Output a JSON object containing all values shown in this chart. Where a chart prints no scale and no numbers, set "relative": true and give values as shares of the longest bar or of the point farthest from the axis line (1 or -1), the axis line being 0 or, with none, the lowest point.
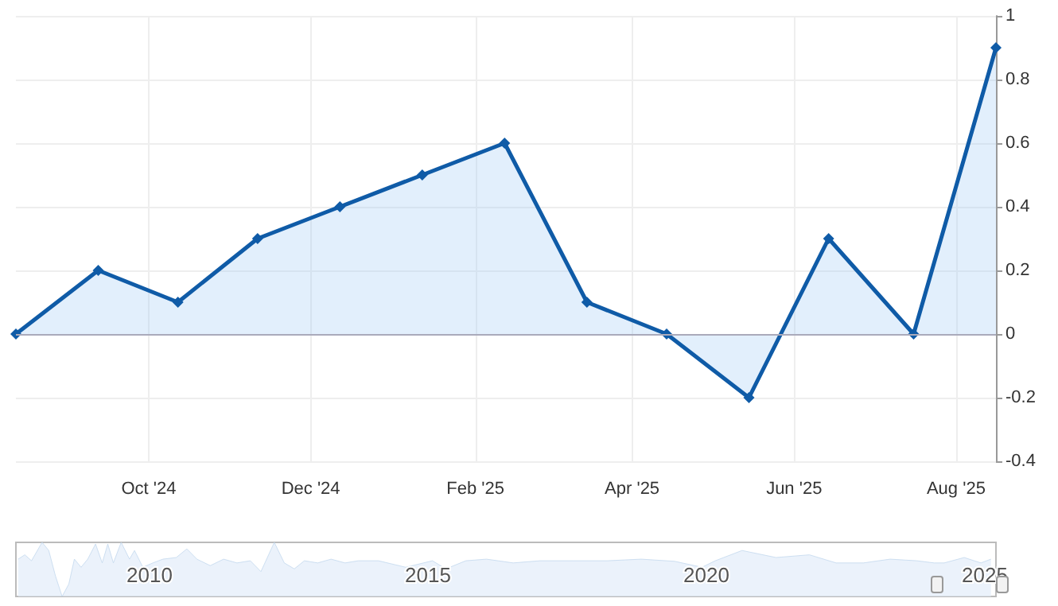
{
  "chart_data": [
    {
      "type": "area",
      "x": [
        "2024-08-12",
        "2024-09-12",
        "2024-10-12",
        "2024-11-11",
        "2024-12-12",
        "2025-01-12",
        "2025-02-12",
        "2025-03-15",
        "2025-04-14",
        "2025-05-15",
        "2025-06-14",
        "2025-07-16",
        "2025-08-16"
      ],
      "series": [
        {
          "color": "#0f5ba7",
          "values": [
            0,
            0.2,
            0.1,
            0.3,
            0.4,
            0.5,
            0.6,
            0.1,
            0,
            -0.2,
            0.3,
            0,
            0.9
          ]
        }
      ],
      "xlim": [
        "2024-08-12",
        "2025-08-16"
      ],
      "xticks": [
        {
          "value": "2024-10-01",
          "label": "Oct '24"
        },
        {
          "value": "2024-12-01",
          "label": "Dec '24"
        },
        {
          "value": "2025-02-01",
          "label": "Feb '25"
        },
        {
          "value": "2025-04-01",
          "label": "Apr '25"
        },
        {
          "value": "2025-06-01",
          "label": "Jun '25"
        },
        {
          "value": "2025-08-01",
          "label": "Aug '25"
        }
      ],
      "ylim": [
        -0.4,
        1
      ],
      "yticks": [
        -0.4,
        -0.2,
        0,
        0.2,
        0.4,
        0.6,
        0.8,
        1
      ],
      "grid": true,
      "marker": "diamond",
      "line_style": "solid"
    },
    {
      "type": "area",
      "relative": true,
      "tick_labels": "x",
      "x": [
        2007.64,
        2007.76,
        2007.88,
        2008.07,
        2008.19,
        2008.31,
        2008.43,
        2008.55,
        2008.65,
        2008.77,
        2008.89,
        2009.03,
        2009.15,
        2009.25,
        2009.35,
        2009.49,
        2009.64,
        2009.73,
        2009.88,
        2010.06,
        2010.24,
        2010.48,
        2010.67,
        2010.85,
        2011.09,
        2011.33,
        2011.57,
        2011.81,
        2012.0,
        2012.24,
        2012.42,
        2012.6,
        2012.78,
        2013.02,
        2013.26,
        2013.51,
        2013.75,
        2014.11,
        2014.6,
        2015.08,
        2015.32,
        2015.68,
        2016.05,
        2016.53,
        2017.01,
        2017.62,
        2018.22,
        2018.83,
        2019.43,
        2019.92,
        2020.16,
        2020.64,
        2021.25,
        2021.85,
        2022.33,
        2022.82,
        2023.3,
        2023.78,
        2024.09,
        2024.27,
        2024.63,
        2024.93,
        2025.11
      ],
      "series": [
        {
          "color": "#c3d8ee",
          "values": [
            0.69,
            0.77,
            0.66,
            1,
            0.85,
            0.38,
            0,
            0.23,
            0.69,
            0.54,
            0.69,
            0.97,
            0.62,
            0.97,
            0.62,
            1,
            0.69,
            0.85,
            0.54,
            0.62,
            0.69,
            0.72,
            0.88,
            0.69,
            0.57,
            0.69,
            0.62,
            0.66,
            0.46,
            1,
            0.62,
            0.51,
            0.66,
            0.62,
            0.69,
            0.62,
            0.66,
            0.66,
            0.54,
            0.66,
            0.51,
            0.66,
            0.69,
            0.62,
            0.66,
            0.66,
            0.66,
            0.69,
            0.65,
            0.54,
            0.66,
            0.85,
            0.72,
            0.77,
            0.62,
            0.62,
            0.69,
            0.66,
            0.62,
            0.62,
            0.72,
            0.62,
            0.69
          ]
        }
      ],
      "xlim": [
        2007.6,
        2025.2
      ],
      "xticks": [
        2010,
        2015,
        2020,
        2025
      ],
      "marker": "none"
    }
  ]
}
